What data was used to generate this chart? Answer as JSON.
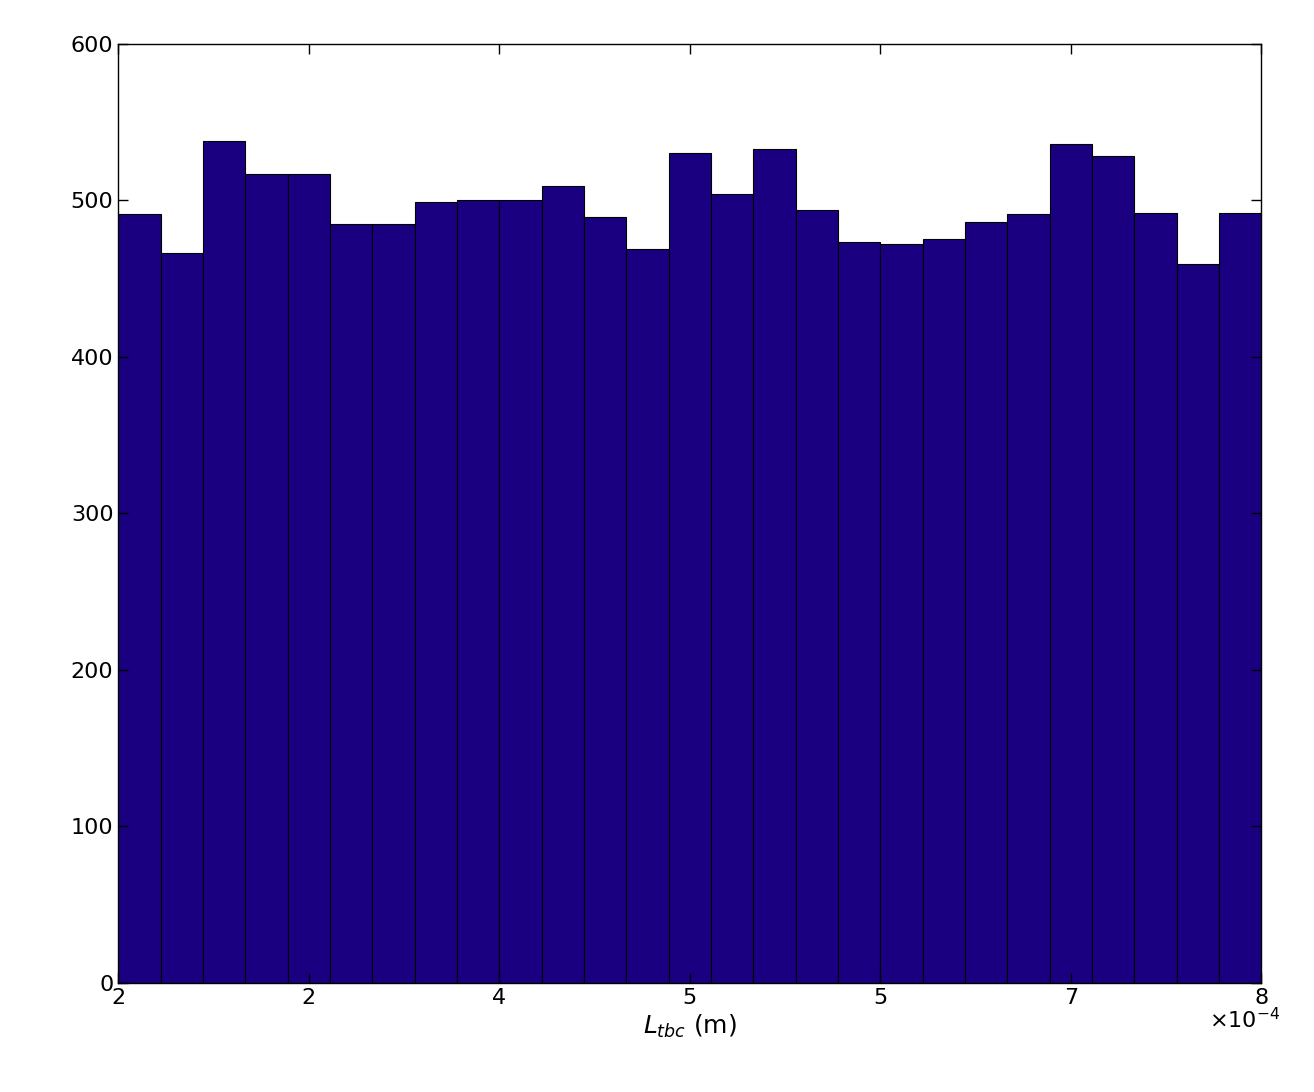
{
  "bar_heights": [
    491,
    466,
    538,
    517,
    517,
    485,
    485,
    499,
    500,
    500,
    509,
    489,
    469,
    530,
    504,
    533,
    494,
    473,
    472,
    475,
    486,
    491,
    536,
    528,
    492,
    459,
    492
  ],
  "x_min": 0.0002,
  "x_max": 0.0008,
  "y_min": 0,
  "y_max": 600,
  "bar_color": "#1a0080",
  "bar_edgecolor": "#000000",
  "xlabel": "L_tbc (m)",
  "ylabel": "",
  "xtick_values": [
    0.0002,
    0.0003,
    0.0004,
    0.0005,
    0.0006,
    0.0007,
    0.0008
  ],
  "ytick_values": [
    0,
    100,
    200,
    300,
    400,
    500,
    600
  ],
  "xlabel_fontsize": 18,
  "tick_fontsize": 16,
  "figsize": [
    13.14,
    10.92
  ],
  "dpi": 100
}
